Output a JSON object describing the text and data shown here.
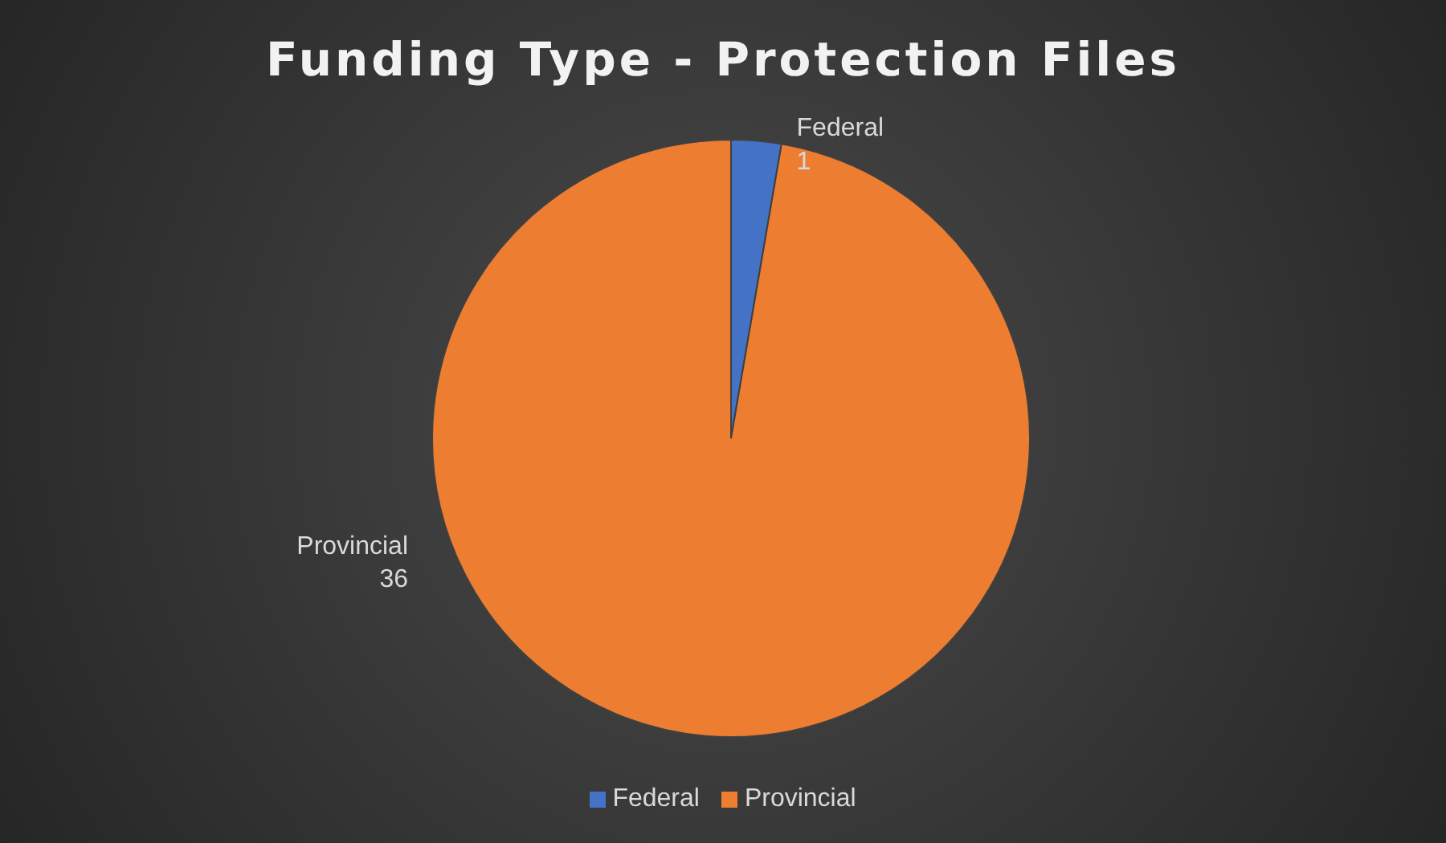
{
  "chart_data": {
    "type": "pie",
    "title": "Funding Type - Protection Files",
    "categories": [
      "Federal",
      "Provincial"
    ],
    "values": [
      1,
      36
    ],
    "colors": [
      "#4472c4",
      "#ed7d31"
    ],
    "data_labels": true,
    "legend": "bottom"
  }
}
